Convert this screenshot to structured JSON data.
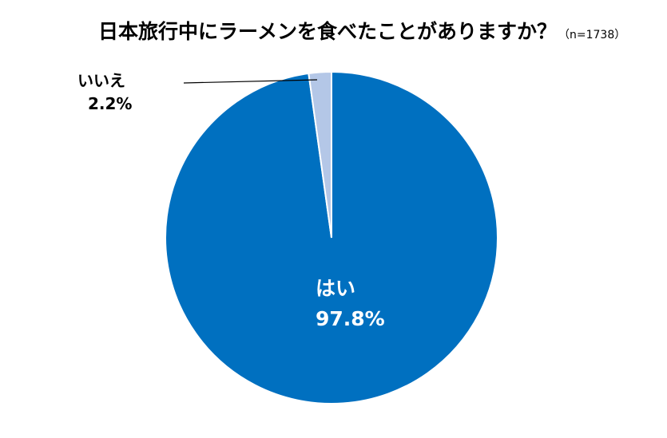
{
  "chart_data": {
    "type": "pie",
    "title": "日本旅行中にラーメンを食べたことがありますか？",
    "subtitle": "（n=1738）",
    "slices": [
      {
        "label": "はい",
        "value": 97.8,
        "value_label": "97.8%",
        "color": "#0070c0",
        "label_position": "inside"
      },
      {
        "label": "いいえ",
        "value": 2.2,
        "value_label": "2.2%",
        "color": "#b4c7e7",
        "label_position": "outside-top-left"
      }
    ],
    "start_angle": "12 o'clock",
    "direction": "counterclockwise-from-top-for-small-slice",
    "slice_border_color": "#ffffff",
    "legend": "none"
  }
}
